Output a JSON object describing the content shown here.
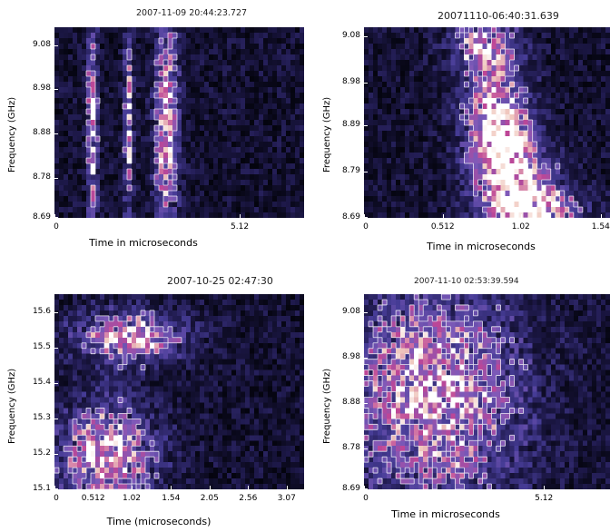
{
  "chart_data": [
    {
      "type": "heatmap",
      "title": "2007-11-09  20:44:23.727",
      "ylabel": "Frequency (GHz)",
      "xlabel": "Time in microseconds",
      "yticks": [
        "9.08",
        "8.98",
        "8.88",
        "8.78",
        "8.69"
      ],
      "xticks": [
        "0",
        "5.12"
      ],
      "ylim": [
        8.69,
        9.12
      ],
      "xlim": [
        0,
        6.9
      ],
      "bursts": [
        {
          "t": 1.05,
          "f": 8.9,
          "dt": 0.1,
          "df": 0.16
        },
        {
          "t": 3.1,
          "f": 8.9,
          "dt": 0.22,
          "df": 0.18
        },
        {
          "t": 2.05,
          "f": 8.9,
          "dt": 0.08,
          "df": 0.15
        }
      ]
    },
    {
      "type": "heatmap",
      "title": "20071110-06:40:31.639",
      "ylabel": "Frequency (GHz)",
      "xlabel": "Time in microseconds",
      "yticks": [
        "9.08",
        "8.98",
        "8.89",
        "8.79",
        "8.69"
      ],
      "xticks": [
        "0",
        "0.512",
        "1.02",
        "1.54"
      ],
      "ylim": [
        8.69,
        9.1
      ],
      "xlim": [
        0,
        1.6
      ],
      "bursts": [
        {
          "t": 0.78,
          "f": 9.06,
          "dt": 0.14,
          "df": 0.04
        },
        {
          "t": 0.86,
          "f": 8.93,
          "dt": 0.14,
          "df": 0.06
        },
        {
          "t": 0.9,
          "f": 8.84,
          "dt": 0.14,
          "df": 0.05
        },
        {
          "t": 1.0,
          "f": 8.76,
          "dt": 0.18,
          "df": 0.05
        },
        {
          "t": 1.1,
          "f": 8.71,
          "dt": 0.2,
          "df": 0.03
        }
      ]
    },
    {
      "type": "heatmap",
      "title": "2007-10-25 02:47:30",
      "ylabel": "Frequency (GHz)",
      "xlabel": "Time (microseconds)",
      "yticks": [
        "15.6",
        "15.5",
        "15.4",
        "15.3",
        "15.2",
        "15.1"
      ],
      "xticks": [
        "0",
        "0.512",
        "1.02",
        "1.54",
        "2.05",
        "2.56",
        "3.07"
      ],
      "ylim": [
        15.1,
        15.65
      ],
      "xlim": [
        0,
        3.3
      ],
      "bursts": [
        {
          "t": 1.0,
          "f": 15.53,
          "dt": 0.5,
          "df": 0.05
        },
        {
          "t": 0.7,
          "f": 15.2,
          "dt": 0.45,
          "df": 0.1
        }
      ]
    },
    {
      "type": "heatmap",
      "title": "2007-11-10  02:53:39.594",
      "ylabel": "Frequency (GHz)",
      "xlabel": "Time in microseconds",
      "yticks": [
        "9.08",
        "8.98",
        "8.88",
        "8.78",
        "8.69"
      ],
      "xticks": [
        "0",
        "5.12"
      ],
      "ylim": [
        8.69,
        9.12
      ],
      "xlim": [
        0,
        7.0
      ],
      "bursts": [
        {
          "t": 2.0,
          "f": 8.9,
          "dt": 1.7,
          "df": 0.17
        }
      ]
    }
  ]
}
